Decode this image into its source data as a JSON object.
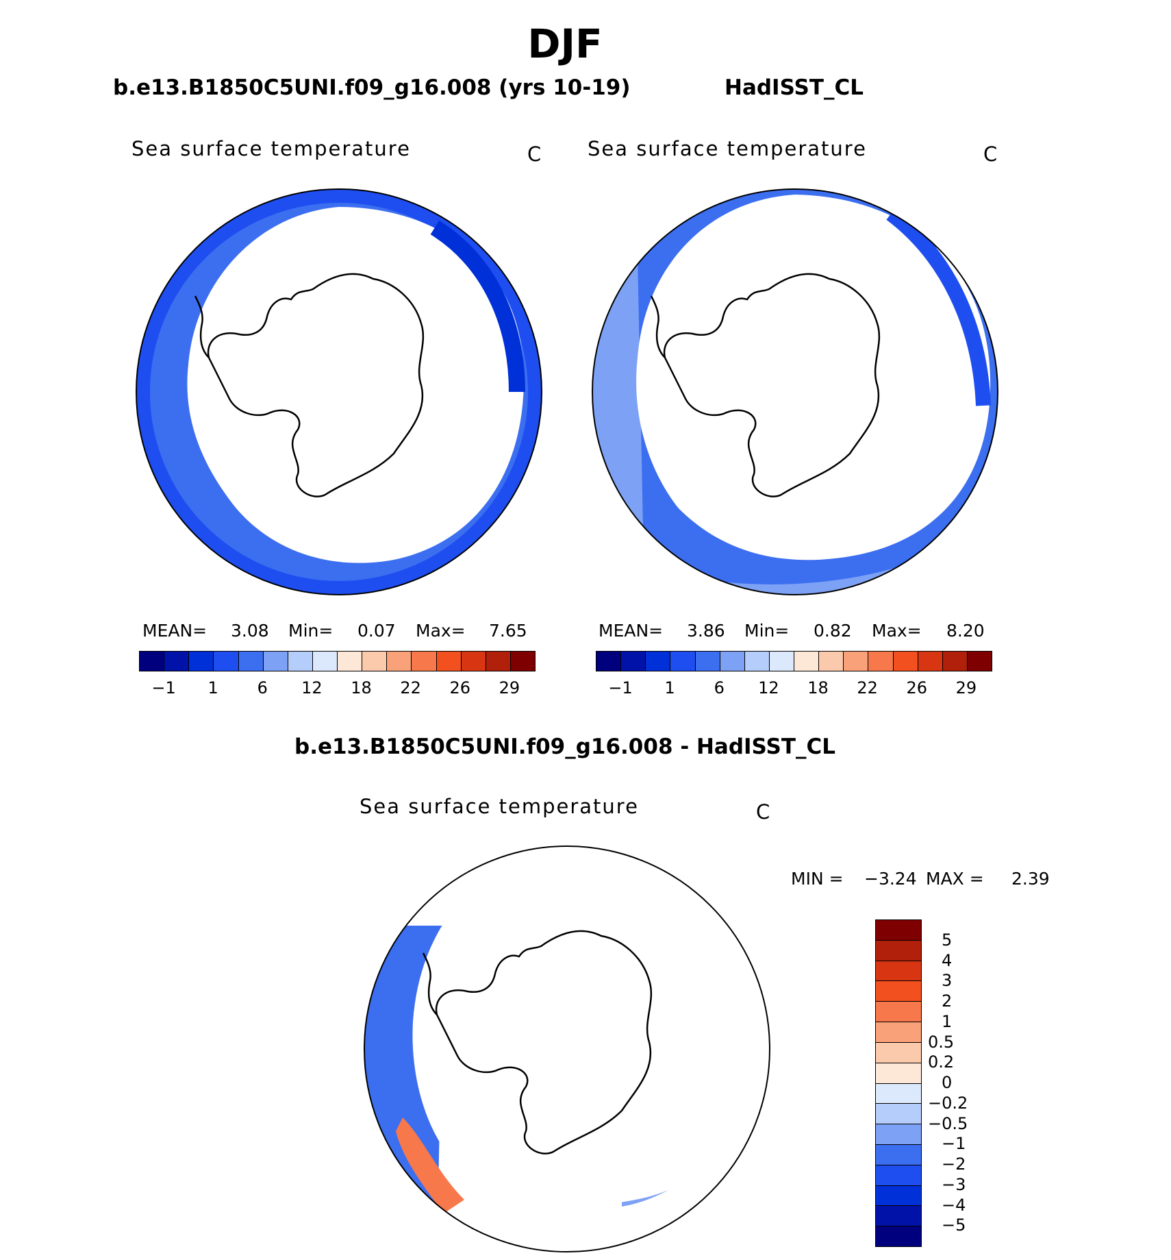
{
  "title": "DJF",
  "panels": [
    {
      "title": "b.e13.B1850C5UNI.f09_g16.008 (yrs 10-19)",
      "variable": "Sea surface temperature",
      "unit": "C",
      "stats": {
        "mean_label": "MEAN=",
        "mean": "3.08",
        "min_label": "Min=",
        "min": "0.07",
        "max_label": "Max=",
        "max": "7.65"
      }
    },
    {
      "title": "HadISST_CL",
      "variable": "Sea surface temperature",
      "unit": "C",
      "stats": {
        "mean_label": "MEAN=",
        "mean": "3.86",
        "min_label": "Min=",
        "min": "0.82",
        "max_label": "Max=",
        "max": "8.20"
      }
    },
    {
      "title": "b.e13.B1850C5UNI.f09_g16.008 - HadISST_CL",
      "variable": "Sea surface temperature",
      "unit": "C",
      "stats": {
        "min_label": "MIN =",
        "min": "−3.24",
        "max_label": "MAX =",
        "max": "2.39"
      }
    }
  ],
  "colorbar_sst": {
    "colors": [
      "#00007f",
      "#0012a8",
      "#0030d8",
      "#1e4ef0",
      "#3c6ef0",
      "#7da2f5",
      "#b5cdfa",
      "#dce9fc",
      "#fde8d8",
      "#fbc9ab",
      "#f9a178",
      "#f7784a",
      "#f2501e",
      "#d83612",
      "#b0200a",
      "#7f0000"
    ],
    "tick_labels": [
      "−1",
      "1",
      "6",
      "12",
      "18",
      "22",
      "26",
      "29"
    ]
  },
  "colorbar_diff": {
    "colors": [
      "#7f0000",
      "#b0200a",
      "#d83612",
      "#f2501e",
      "#f7784a",
      "#f9a178",
      "#fbc9ab",
      "#fde8d8",
      "#dce9fc",
      "#b5cdfa",
      "#7da2f5",
      "#3c6ef0",
      "#1e4ef0",
      "#0030d8",
      "#0012a8",
      "#00007f"
    ],
    "tick_labels": [
      "5",
      "4",
      "3",
      "2",
      "1",
      "0.5",
      "0.2",
      "0",
      "−0.2",
      "−0.5",
      "−1",
      "−2",
      "−3",
      "−4",
      "−5"
    ]
  }
}
